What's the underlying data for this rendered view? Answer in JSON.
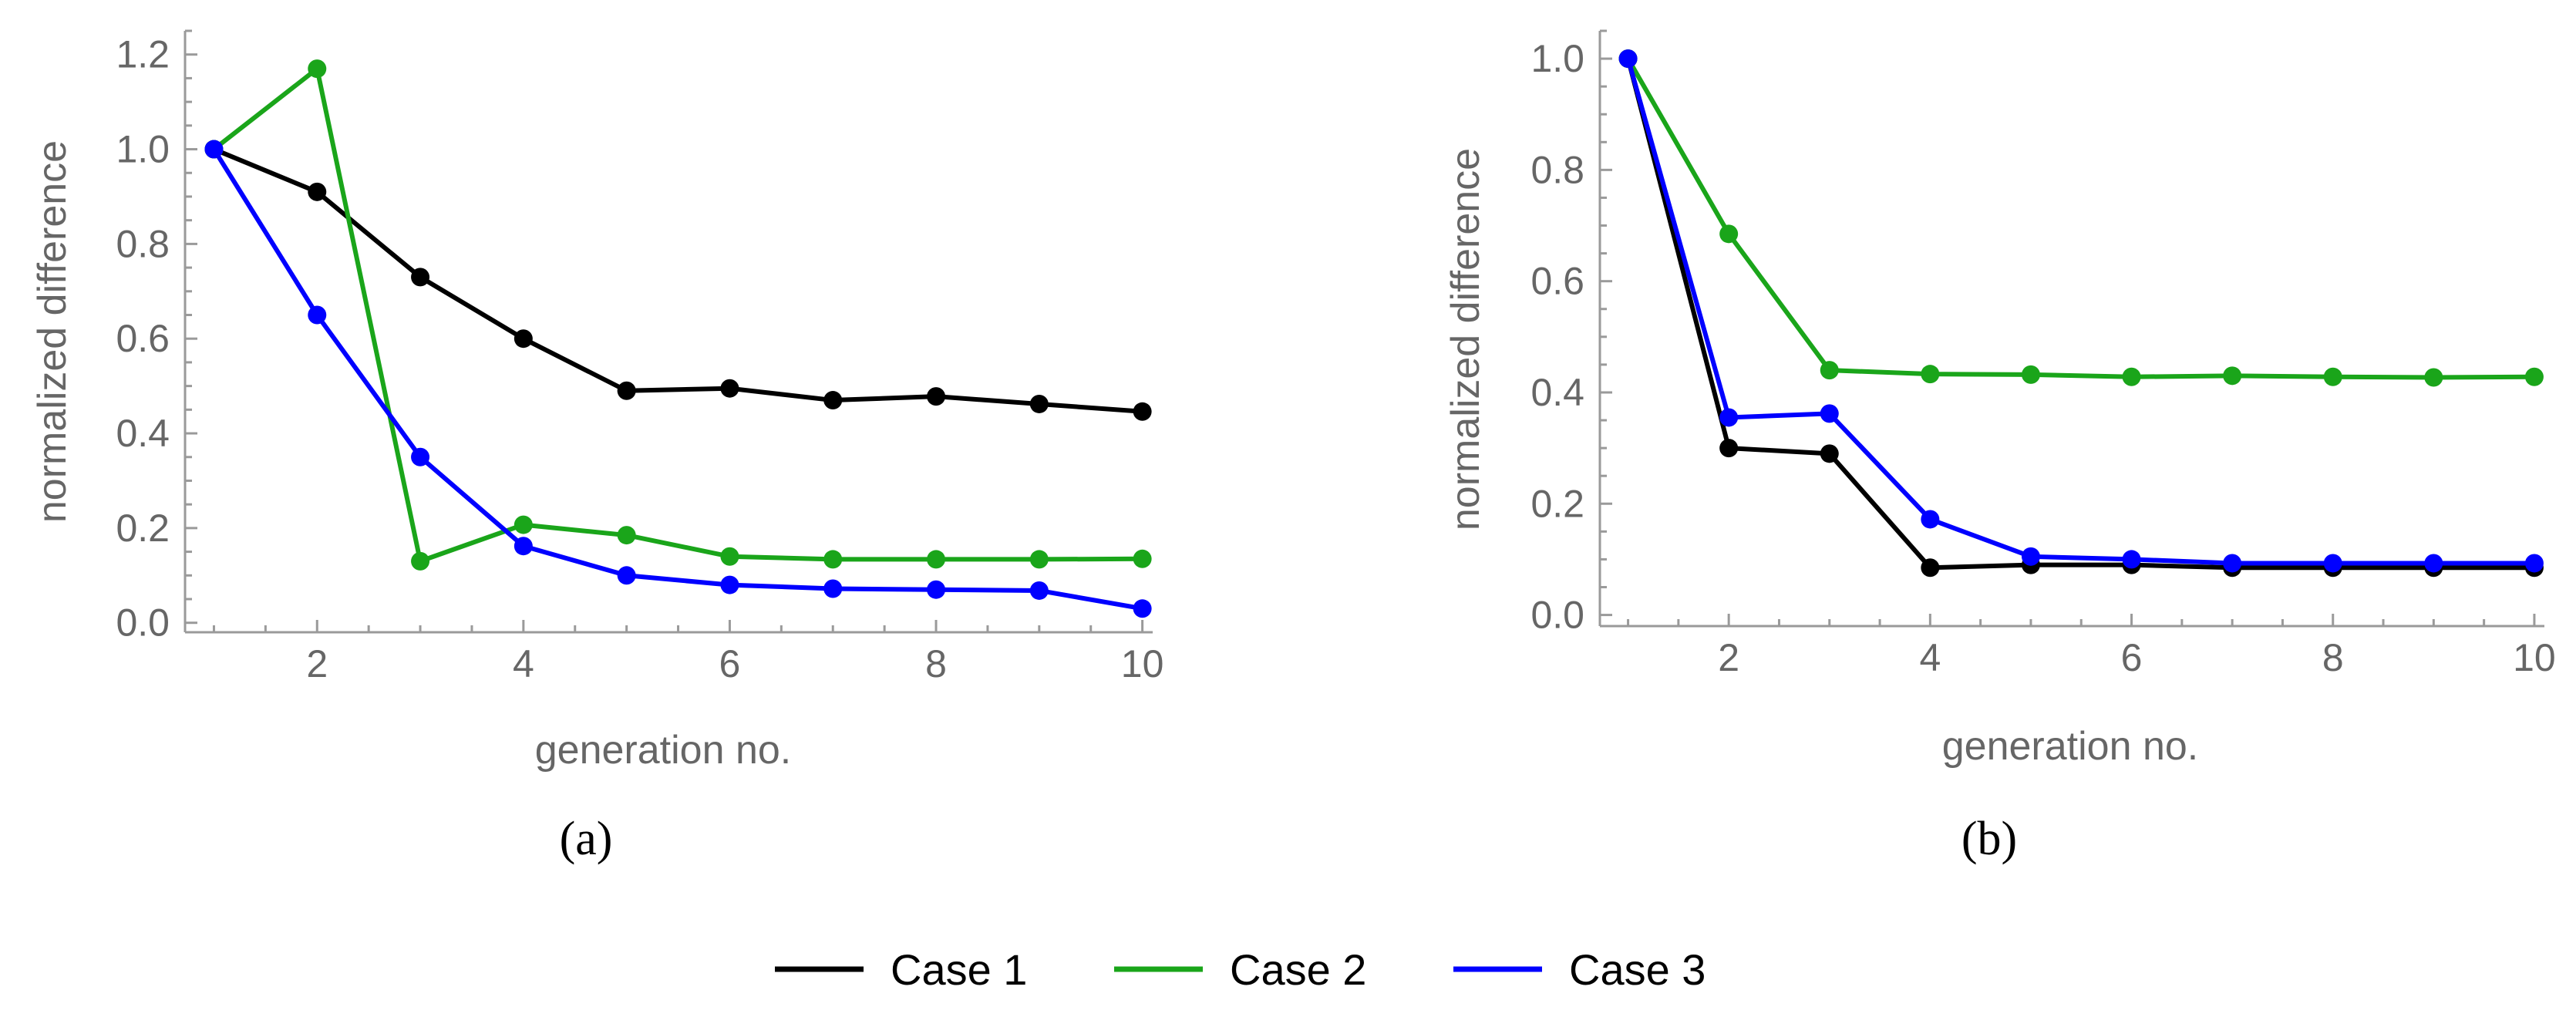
{
  "legend": {
    "entries": [
      {
        "label": "Case 1",
        "color": "#000000"
      },
      {
        "label": "Case 2",
        "color": "#1aa51a"
      },
      {
        "label": "Case 3",
        "color": "#0000ff"
      }
    ]
  },
  "chart_data": [
    {
      "type": "line",
      "panel_label": "(a)",
      "title": "",
      "xlabel": "generation no.",
      "ylabel": "normalized difference",
      "xlim": [
        0.72,
        10.1
      ],
      "ylim": [
        -0.02,
        1.25
      ],
      "xticks": [
        2,
        4,
        6,
        8,
        10
      ],
      "yticks": [
        0.0,
        0.2,
        0.4,
        0.6,
        0.8,
        1.0,
        1.2
      ],
      "ytick_labels": [
        "0.0",
        "0.2",
        "0.4",
        "0.6",
        "0.8",
        "1.0",
        "1.2"
      ],
      "x": [
        1,
        2,
        3,
        4,
        5,
        6,
        7,
        8,
        9,
        10
      ],
      "series": [
        {
          "name": "Case 1",
          "color": "#000000",
          "values": [
            1.0,
            0.91,
            0.73,
            0.6,
            0.49,
            0.495,
            0.47,
            0.478,
            0.462,
            0.446
          ]
        },
        {
          "name": "Case 2",
          "color": "#1aa51a",
          "values": [
            1.0,
            1.17,
            0.13,
            0.207,
            0.185,
            0.14,
            0.134,
            0.134,
            0.134,
            0.135
          ]
        },
        {
          "name": "Case 3",
          "color": "#0000ff",
          "values": [
            1.0,
            0.65,
            0.35,
            0.162,
            0.1,
            0.08,
            0.072,
            0.07,
            0.068,
            0.03
          ]
        }
      ]
    },
    {
      "type": "line",
      "panel_label": "(b)",
      "title": "",
      "xlabel": "generation no.",
      "ylabel": "normalized difference",
      "xlim": [
        0.72,
        10.1
      ],
      "ylim": [
        -0.02,
        1.05
      ],
      "xticks": [
        2,
        4,
        6,
        8,
        10
      ],
      "yticks": [
        0.0,
        0.2,
        0.4,
        0.6,
        0.8,
        1.0
      ],
      "ytick_labels": [
        "0.0",
        "0.2",
        "0.4",
        "0.6",
        "0.8",
        "1.0"
      ],
      "x": [
        1,
        2,
        3,
        4,
        5,
        6,
        7,
        8,
        9,
        10
      ],
      "series": [
        {
          "name": "Case 1",
          "color": "#000000",
          "values": [
            1.0,
            0.3,
            0.29,
            0.085,
            0.09,
            0.09,
            0.085,
            0.085,
            0.085,
            0.085
          ]
        },
        {
          "name": "Case 2",
          "color": "#1aa51a",
          "values": [
            1.0,
            0.685,
            0.44,
            0.433,
            0.432,
            0.428,
            0.43,
            0.428,
            0.427,
            0.428
          ]
        },
        {
          "name": "Case 3",
          "color": "#0000ff",
          "values": [
            1.0,
            0.355,
            0.362,
            0.172,
            0.105,
            0.1,
            0.093,
            0.093,
            0.093,
            0.093
          ]
        }
      ]
    }
  ]
}
